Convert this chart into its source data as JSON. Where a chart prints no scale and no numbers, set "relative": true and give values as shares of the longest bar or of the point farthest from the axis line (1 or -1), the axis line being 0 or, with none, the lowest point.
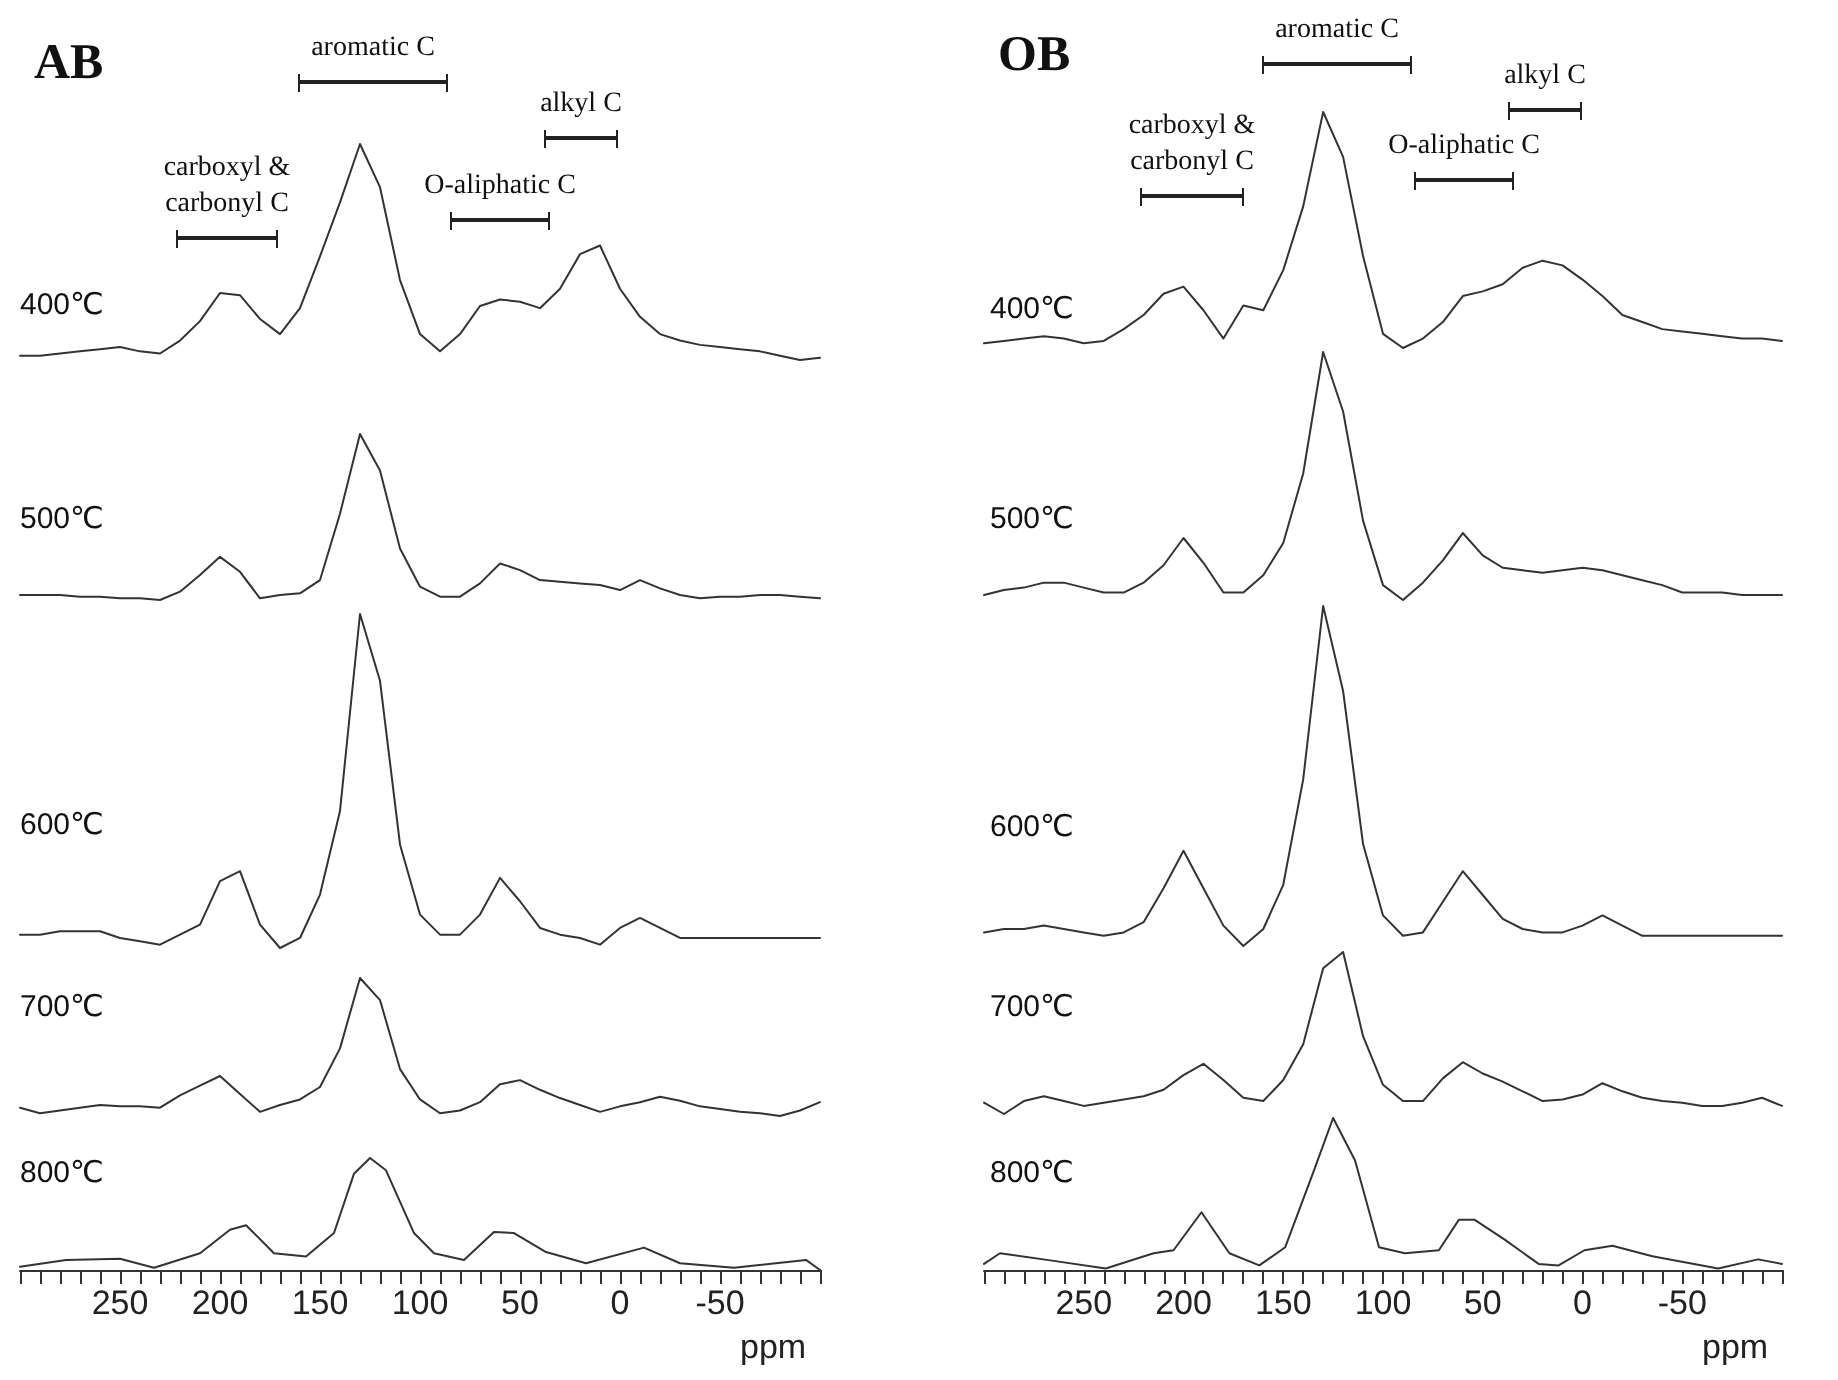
{
  "chart_data": [
    {
      "type": "line",
      "title": "AB",
      "ylabel": "400℃",
      "relative": true,
      "tick_labels": false,
      "annotations": [
        "carboxyl &\ncarbonyl C",
        "aromatic C",
        "O-aliphatic C",
        "alkyl C"
      ],
      "categories": [
        null,
        null,
        null,
        null,
        null,
        null,
        null,
        null,
        null,
        null,
        null,
        null,
        null,
        null,
        null,
        null,
        null,
        null,
        null,
        null,
        null,
        null,
        null,
        null,
        null,
        null,
        null,
        null,
        null,
        null,
        null,
        null,
        null,
        null,
        null,
        null,
        null,
        null,
        null,
        null,
        null
      ],
      "series": [
        {
          "color": "#333333",
          "values": [
            0.02,
            0.02,
            0.03,
            0.04,
            0.05,
            0.06,
            0.04,
            0.03,
            0.09,
            0.18,
            0.31,
            0.3,
            0.19,
            0.12,
            0.24,
            0.48,
            0.73,
            1,
            0.8,
            0.37,
            0.12,
            0.04,
            0.12,
            0.25,
            0.28,
            0.27,
            0.24,
            0.33,
            0.49,
            0.53,
            0.33,
            0.2,
            0.12,
            0.09,
            0.07,
            0.06,
            0.05,
            0.04,
            0.02,
            0,
            0.01
          ]
        }
      ]
    },
    {
      "type": "line",
      "ylabel": "500℃",
      "relative": true,
      "tick_labels": false,
      "categories": [
        null,
        null,
        null,
        null,
        null,
        null,
        null,
        null,
        null,
        null,
        null,
        null,
        null,
        null,
        null,
        null,
        null,
        null,
        null,
        null,
        null,
        null,
        null,
        null,
        null,
        null,
        null,
        null,
        null,
        null,
        null,
        null,
        null,
        null,
        null,
        null,
        null,
        null,
        null,
        null,
        null
      ],
      "series": [
        {
          "color": "#333333",
          "values": [
            0.03,
            0.03,
            0.03,
            0.02,
            0.02,
            0.01,
            0.01,
            0,
            0.05,
            0.15,
            0.26,
            0.17,
            0.01,
            0.03,
            0.04,
            0.12,
            0.52,
            1,
            0.78,
            0.31,
            0.08,
            0.02,
            0.02,
            0.1,
            0.22,
            0.18,
            0.12,
            0.11,
            0.1,
            0.09,
            0.06,
            0.12,
            0.07,
            0.03,
            0.01,
            0.02,
            0.02,
            0.03,
            0.03,
            0.02,
            0.01
          ]
        }
      ]
    },
    {
      "type": "line",
      "ylabel": "600℃",
      "relative": true,
      "tick_labels": false,
      "categories": [
        null,
        null,
        null,
        null,
        null,
        null,
        null,
        null,
        null,
        null,
        null,
        null,
        null,
        null,
        null,
        null,
        null,
        null,
        null,
        null,
        null,
        null,
        null,
        null,
        null,
        null,
        null,
        null,
        null,
        null,
        null,
        null,
        null,
        null,
        null,
        null,
        null,
        null,
        null,
        null,
        null
      ],
      "series": [
        {
          "color": "#333333",
          "values": [
            0.04,
            0.04,
            0.05,
            0.05,
            0.05,
            0.03,
            0.02,
            0.01,
            0.04,
            0.07,
            0.2,
            0.23,
            0.07,
            0,
            0.03,
            0.16,
            0.41,
            1,
            0.8,
            0.31,
            0.1,
            0.04,
            0.04,
            0.1,
            0.21,
            0.14,
            0.06,
            0.04,
            0.03,
            0.01,
            0.06,
            0.09,
            0.06,
            0.03,
            0.03,
            0.03,
            0.03,
            0.03,
            0.03,
            0.03,
            0.03
          ]
        }
      ]
    },
    {
      "type": "line",
      "ylabel": "700℃",
      "relative": true,
      "tick_labels": false,
      "categories": [
        null,
        null,
        null,
        null,
        null,
        null,
        null,
        null,
        null,
        null,
        null,
        null,
        null,
        null,
        null,
        null,
        null,
        null,
        null,
        null,
        null,
        null,
        null,
        null,
        null,
        null,
        null,
        null,
        null,
        null,
        null,
        null,
        null,
        null,
        null,
        null,
        null,
        null,
        null,
        null,
        null
      ],
      "series": [
        {
          "color": "#333333",
          "values": [
            0.06,
            0.02,
            0.04,
            0.06,
            0.08,
            0.07,
            0.07,
            0.06,
            0.15,
            0.22,
            0.29,
            0.16,
            0.03,
            0.08,
            0.12,
            0.21,
            0.49,
            1,
            0.84,
            0.34,
            0.12,
            0.02,
            0.04,
            0.1,
            0.23,
            0.26,
            0.19,
            0.13,
            0.08,
            0.03,
            0.07,
            0.1,
            0.14,
            0.11,
            0.07,
            0.05,
            0.03,
            0.02,
            0,
            0.04,
            0.1
          ]
        }
      ]
    },
    {
      "type": "line",
      "ylabel": "800℃",
      "relative": true,
      "xlim": [
        300,
        -100
      ],
      "tick_labels": "x",
      "xlabel": "ppm",
      "xticks": [
        {
          "value": 300,
          "label": null
        },
        {
          "value": 290,
          "label": null
        },
        {
          "value": 280,
          "label": null
        },
        {
          "value": 270,
          "label": null
        },
        {
          "value": 260,
          "label": null
        },
        250,
        {
          "value": 240,
          "label": null
        },
        {
          "value": 230,
          "label": null
        },
        {
          "value": 220,
          "label": null
        },
        {
          "value": 210,
          "label": null
        },
        200,
        {
          "value": 190,
          "label": null
        },
        {
          "value": 180,
          "label": null
        },
        {
          "value": 170,
          "label": null
        },
        {
          "value": 160,
          "label": null
        },
        150,
        {
          "value": 140,
          "label": null
        },
        {
          "value": 130,
          "label": null
        },
        {
          "value": 120,
          "label": null
        },
        {
          "value": 110,
          "label": null
        },
        100,
        {
          "value": 90,
          "label": null
        },
        {
          "value": 80,
          "label": null
        },
        {
          "value": 70,
          "label": null
        },
        {
          "value": 60,
          "label": null
        },
        50,
        {
          "value": 40,
          "label": null
        },
        {
          "value": 30,
          "label": null
        },
        {
          "value": 20,
          "label": null
        },
        {
          "value": 10,
          "label": null
        },
        0,
        {
          "value": -10,
          "label": null
        },
        {
          "value": -20,
          "label": null
        },
        {
          "value": -30,
          "label": null
        },
        {
          "value": -40,
          "label": null
        },
        -50,
        {
          "value": -60,
          "label": null
        },
        {
          "value": -70,
          "label": null
        },
        {
          "value": -80,
          "label": null
        },
        {
          "value": -90,
          "label": null
        },
        {
          "value": -100,
          "label": null
        }
      ],
      "x": [
        300,
        277,
        250,
        233,
        210,
        195,
        187,
        173,
        157,
        143,
        133,
        125,
        117,
        103,
        93,
        78,
        63,
        53,
        37,
        17,
        -12,
        -30,
        -57,
        -93,
        -100
      ],
      "series": [
        {
          "color": "#333333",
          "values": [
            0.03,
            0.09,
            0.1,
            0.02,
            0.15,
            0.36,
            0.4,
            0.15,
            0.12,
            0.33,
            0.86,
            1,
            0.89,
            0.33,
            0.15,
            0.09,
            0.34,
            0.33,
            0.16,
            0.06,
            0.2,
            0.06,
            0.02,
            0.09,
            0
          ]
        }
      ]
    },
    {
      "type": "line",
      "title": "OB",
      "ylabel": "400℃",
      "relative": true,
      "tick_labels": false,
      "annotations": [
        "carboxyl &\ncarbonyl C",
        "aromatic C",
        "O-aliphatic C",
        "alkyl C"
      ],
      "categories": [
        null,
        null,
        null,
        null,
        null,
        null,
        null,
        null,
        null,
        null,
        null,
        null,
        null,
        null,
        null,
        null,
        null,
        null,
        null,
        null,
        null,
        null,
        null,
        null,
        null,
        null,
        null,
        null,
        null,
        null,
        null,
        null,
        null,
        null,
        null,
        null,
        null,
        null,
        null,
        null,
        null
      ],
      "series": [
        {
          "color": "#333333",
          "values": [
            0.02,
            0.03,
            0.04,
            0.05,
            0.04,
            0.02,
            0.03,
            0.08,
            0.14,
            0.23,
            0.26,
            0.16,
            0.04,
            0.18,
            0.16,
            0.33,
            0.6,
            1,
            0.81,
            0.39,
            0.06,
            0,
            0.04,
            0.11,
            0.22,
            0.24,
            0.27,
            0.34,
            0.37,
            0.35,
            0.29,
            0.22,
            0.14,
            0.11,
            0.08,
            0.07,
            0.06,
            0.05,
            0.04,
            0.04,
            0.03
          ]
        }
      ]
    },
    {
      "type": "line",
      "ylabel": "500℃",
      "relative": true,
      "tick_labels": false,
      "categories": [
        null,
        null,
        null,
        null,
        null,
        null,
        null,
        null,
        null,
        null,
        null,
        null,
        null,
        null,
        null,
        null,
        null,
        null,
        null,
        null,
        null,
        null,
        null,
        null,
        null,
        null,
        null,
        null,
        null,
        null,
        null,
        null,
        null,
        null,
        null,
        null,
        null,
        null,
        null,
        null,
        null
      ],
      "series": [
        {
          "color": "#333333",
          "values": [
            0.02,
            0.04,
            0.05,
            0.07,
            0.07,
            0.05,
            0.03,
            0.03,
            0.07,
            0.14,
            0.25,
            0.15,
            0.03,
            0.03,
            0.1,
            0.23,
            0.51,
            1,
            0.76,
            0.32,
            0.06,
            0,
            0.07,
            0.16,
            0.27,
            0.18,
            0.13,
            0.12,
            0.11,
            0.12,
            0.13,
            0.12,
            0.1,
            0.08,
            0.06,
            0.03,
            0.03,
            0.03,
            0.02,
            0.02,
            0.02
          ]
        }
      ]
    },
    {
      "type": "line",
      "ylabel": "600℃",
      "relative": true,
      "tick_labels": false,
      "categories": [
        null,
        null,
        null,
        null,
        null,
        null,
        null,
        null,
        null,
        null,
        null,
        null,
        null,
        null,
        null,
        null,
        null,
        null,
        null,
        null,
        null,
        null,
        null,
        null,
        null,
        null,
        null,
        null,
        null,
        null,
        null,
        null,
        null,
        null,
        null,
        null,
        null,
        null,
        null,
        null,
        null
      ],
      "series": [
        {
          "color": "#333333",
          "values": [
            0.04,
            0.05,
            0.05,
            0.06,
            0.05,
            0.04,
            0.03,
            0.04,
            0.07,
            0.17,
            0.28,
            0.17,
            0.06,
            0,
            0.05,
            0.18,
            0.49,
            1,
            0.75,
            0.3,
            0.09,
            0.03,
            0.04,
            0.13,
            0.22,
            0.15,
            0.08,
            0.05,
            0.04,
            0.04,
            0.06,
            0.09,
            0.06,
            0.03,
            0.03,
            0.03,
            0.03,
            0.03,
            0.03,
            0.03,
            0.03
          ]
        }
      ]
    },
    {
      "type": "line",
      "ylabel": "700℃",
      "relative": true,
      "tick_labels": false,
      "categories": [
        null,
        null,
        null,
        null,
        null,
        null,
        null,
        null,
        null,
        null,
        null,
        null,
        null,
        null,
        null,
        null,
        null,
        null,
        null,
        null,
        null,
        null,
        null,
        null,
        null,
        null,
        null,
        null,
        null,
        null,
        null,
        null,
        null,
        null,
        null,
        null,
        null,
        null,
        null,
        null,
        null
      ],
      "series": [
        {
          "color": "#333333",
          "values": [
            0.07,
            0,
            0.08,
            0.11,
            0.08,
            0.05,
            0.07,
            0.09,
            0.11,
            0.15,
            0.24,
            0.31,
            0.21,
            0.1,
            0.08,
            0.21,
            0.43,
            0.9,
            1,
            0.48,
            0.18,
            0.08,
            0.08,
            0.22,
            0.32,
            0.25,
            0.2,
            0.14,
            0.08,
            0.09,
            0.12,
            0.19,
            0.14,
            0.1,
            0.08,
            0.07,
            0.05,
            0.05,
            0.07,
            0.1,
            0.05
          ]
        }
      ]
    },
    {
      "type": "line",
      "ylabel": "800℃",
      "relative": true,
      "xlim": [
        300,
        -100
      ],
      "tick_labels": "x",
      "xlabel": "ppm",
      "xticks": [
        {
          "value": 300,
          "label": null
        },
        {
          "value": 290,
          "label": null
        },
        {
          "value": 280,
          "label": null
        },
        {
          "value": 270,
          "label": null
        },
        {
          "value": 260,
          "label": null
        },
        250,
        {
          "value": 240,
          "label": null
        },
        {
          "value": 230,
          "label": null
        },
        {
          "value": 220,
          "label": null
        },
        {
          "value": 210,
          "label": null
        },
        200,
        {
          "value": 190,
          "label": null
        },
        {
          "value": 180,
          "label": null
        },
        {
          "value": 170,
          "label": null
        },
        {
          "value": 160,
          "label": null
        },
        150,
        {
          "value": 140,
          "label": null
        },
        {
          "value": 130,
          "label": null
        },
        {
          "value": 120,
          "label": null
        },
        {
          "value": 110,
          "label": null
        },
        100,
        {
          "value": 90,
          "label": null
        },
        {
          "value": 80,
          "label": null
        },
        {
          "value": 70,
          "label": null
        },
        {
          "value": 60,
          "label": null
        },
        50,
        {
          "value": 40,
          "label": null
        },
        {
          "value": 30,
          "label": null
        },
        {
          "value": 20,
          "label": null
        },
        {
          "value": 10,
          "label": null
        },
        0,
        {
          "value": -10,
          "label": null
        },
        {
          "value": -20,
          "label": null
        },
        {
          "value": -30,
          "label": null
        },
        {
          "value": -40,
          "label": null
        },
        -50,
        {
          "value": -60,
          "label": null
        },
        {
          "value": -70,
          "label": null
        },
        {
          "value": -80,
          "label": null
        },
        {
          "value": -90,
          "label": null
        },
        {
          "value": -100,
          "label": null
        }
      ],
      "x": [
        300,
        292,
        265,
        239,
        215,
        205,
        191,
        177,
        162,
        149,
        135,
        125,
        114,
        102,
        89,
        72,
        62,
        54,
        39,
        22,
        12,
        -1,
        -15,
        -35,
        -68,
        -88,
        -100
      ],
      "series": [
        {
          "color": "#333333",
          "values": [
            0.04,
            0.11,
            0.06,
            0.01,
            0.11,
            0.13,
            0.38,
            0.11,
            0.03,
            0.15,
            0.64,
            1,
            0.72,
            0.15,
            0.11,
            0.13,
            0.33,
            0.33,
            0.2,
            0.04,
            0.03,
            0.13,
            0.16,
            0.09,
            0.01,
            0.07,
            0.04
          ]
        }
      ]
    }
  ]
}
